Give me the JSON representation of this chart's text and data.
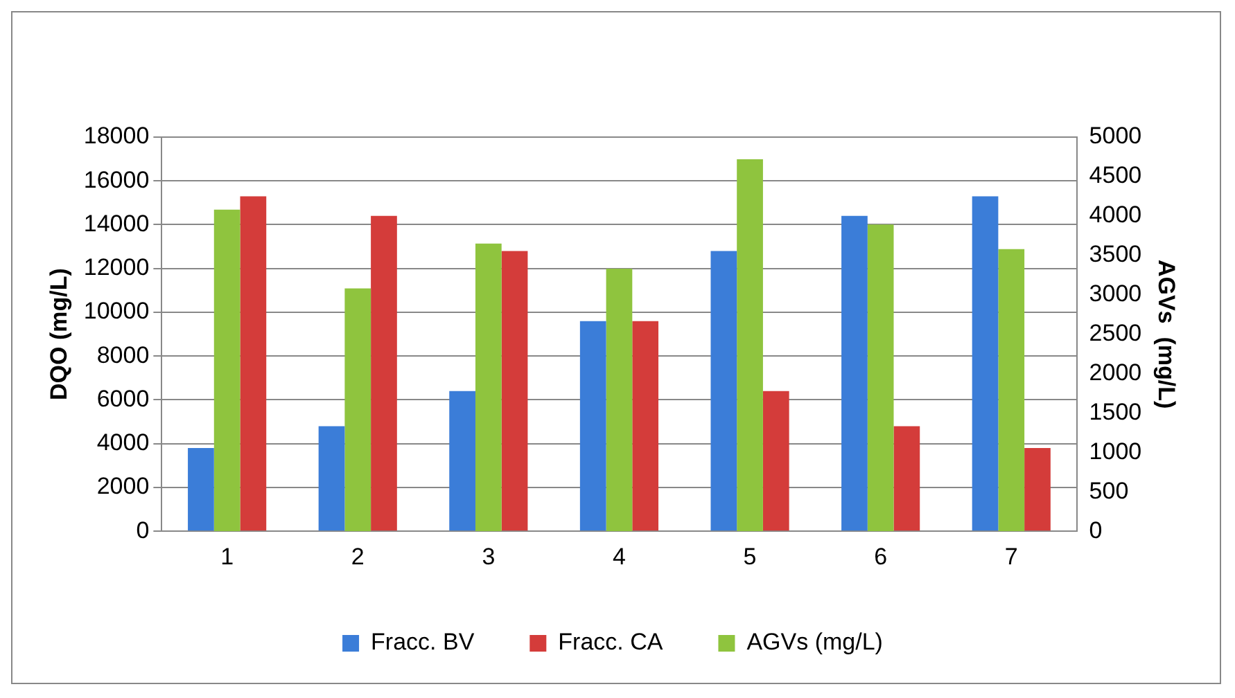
{
  "chart_data": {
    "type": "bar",
    "categories": [
      "1",
      "2",
      "3",
      "4",
      "5",
      "6",
      "7"
    ],
    "series": [
      {
        "name": "Fracc. BV",
        "color": "#3b7dd8",
        "values": [
          3800,
          4800,
          6400,
          9600,
          12800,
          14400,
          15300
        ]
      },
      {
        "name": "Fracc. CA",
        "color": "#d43c3a",
        "values": [
          15300,
          14400,
          12800,
          9600,
          6400,
          4800,
          3800
        ]
      },
      {
        "name": "AGVs (mg/L)",
        "color": "#8fc43e",
        "axis": "y2",
        "values": [
          4080,
          3080,
          3650,
          3330,
          4720,
          3890,
          3580
        ]
      }
    ],
    "ylabel": "DQO (mg/L)",
    "y2label": "AGVs  (mg/L)",
    "ylim": [
      0,
      18000
    ],
    "yticks": [
      0,
      2000,
      4000,
      6000,
      8000,
      10000,
      12000,
      14000,
      16000,
      18000
    ],
    "y2lim": [
      0,
      5000
    ],
    "y2ticks": [
      0,
      500,
      1000,
      1500,
      2000,
      2500,
      3000,
      3500,
      4000,
      4500,
      5000
    ],
    "grid": "y",
    "legend": "bottom"
  }
}
